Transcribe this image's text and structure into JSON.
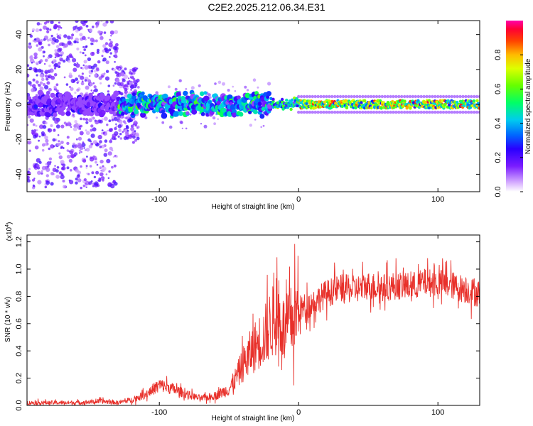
{
  "title": "C2E2.2025.212.06.34.E31",
  "chart_data": [
    {
      "type": "heatmap",
      "xlabel": "Height of straight line (km)",
      "ylabel": "Frequency (Hz)",
      "xlim": [
        -195,
        130
      ],
      "ylim": [
        -50,
        48
      ],
      "x_ticks": [
        -100,
        0,
        100
      ],
      "y_ticks": [
        -40,
        -20,
        0,
        20,
        40
      ],
      "colorbar": {
        "label": "Normalized spectral amplitude",
        "range": [
          0,
          1
        ],
        "ticks": [
          "0.0",
          "0.2",
          "0.4",
          "0.6",
          "0.8"
        ],
        "colors": [
          "#ffffff",
          "#c080ff",
          "#6600ff",
          "#0000ff",
          "#00ccff",
          "#00ff66",
          "#aaff00",
          "#ffee00",
          "#ff8800",
          "#ff0000",
          "#ff00cc"
        ]
      },
      "band": {
        "center_hz": 0,
        "segments": [
          {
            "x_range": [
              -195,
              -130
            ],
            "amplitude": 0.25,
            "scatter_extent_hz": 48
          },
          {
            "x_range": [
              -130,
              -20
            ],
            "amplitude": 0.55,
            "scatter_extent_hz": 22
          },
          {
            "x_range": [
              -20,
              0
            ],
            "amplitude": 0.6
          },
          {
            "x_range": [
              0,
              130
            ],
            "amplitude": 0.85
          }
        ]
      }
    },
    {
      "type": "line",
      "xlabel": "Height of straight line (km)",
      "ylabel": "SNR (10 * v/v)",
      "y_multiplier": "(x10^4)",
      "xlim": [
        -195,
        130
      ],
      "ylim": [
        0,
        1.25
      ],
      "x_ticks": [
        -100,
        0,
        100
      ],
      "y_ticks": [
        "0.0",
        "0.2",
        "0.4",
        "0.6",
        "0.8",
        "1.0",
        "1.2"
      ],
      "color": "#e8302a",
      "series": [
        {
          "x": [
            -195,
            -180,
            -160,
            -140,
            -130,
            -120,
            -110,
            -100,
            -90,
            -80,
            -70,
            -60,
            -50,
            -45,
            -40,
            -35,
            -30,
            -25,
            -20,
            -15,
            -10,
            -5,
            0,
            10,
            20,
            30,
            40,
            50,
            60,
            70,
            80,
            90,
            100,
            110,
            120,
            130
          ],
          "values": [
            0.02,
            0.02,
            0.02,
            0.03,
            0.02,
            0.04,
            0.08,
            0.15,
            0.12,
            0.08,
            0.05,
            0.07,
            0.12,
            0.2,
            0.3,
            0.38,
            0.45,
            0.5,
            0.6,
            0.65,
            0.55,
            0.62,
            0.7,
            0.75,
            0.82,
            0.86,
            0.85,
            0.88,
            0.86,
            0.88,
            0.87,
            0.9,
            0.9,
            0.88,
            0.85,
            0.82
          ]
        }
      ]
    }
  ]
}
